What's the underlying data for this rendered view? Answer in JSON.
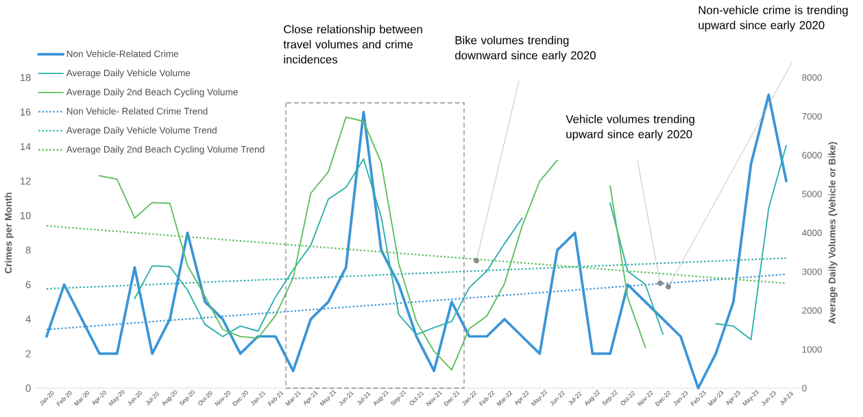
{
  "chart_data": {
    "type": "line",
    "ylabel": "Crimes per Month",
    "y2label": "Average Daily Volumes (Vehicle or Bike)",
    "categories": [
      "Jan-20",
      "Feb-20",
      "Mar-20",
      "Apr-20",
      "May-20",
      "Jun-20",
      "Jul-20",
      "Aug-20",
      "Sep-20",
      "Oct-20",
      "Nov-20",
      "Dec-20",
      "Jan-21",
      "Feb-21",
      "Mar-21",
      "Apr-21",
      "May-21",
      "Jun-21",
      "Jul-21",
      "Aug-21",
      "Sep-21",
      "Oct-21",
      "Nov-21",
      "Dec-21",
      "Jan-22",
      "Feb-22",
      "Mar-22",
      "Apr-22",
      "May-22",
      "Jun-22",
      "Jul-22",
      "Aug-22",
      "Sep-22",
      "Oct-22",
      "Nov-22",
      "Dec-22",
      "Jan-23",
      "Feb-23",
      "Mar-23",
      "Apr-23",
      "May-23",
      "Jun-23",
      "Jul-23"
    ],
    "series": [
      {
        "name": "Non Vehicle-Related Crime",
        "color": "#3a95d8",
        "values": [
          3,
          6,
          4,
          2,
          2,
          7,
          2,
          4,
          9,
          5,
          4,
          2,
          3,
          3,
          1,
          4,
          5,
          7,
          16,
          8,
          6,
          3,
          1,
          5,
          3,
          3,
          4,
          3,
          2,
          8,
          9,
          2,
          2,
          6,
          5,
          4,
          3,
          0,
          2,
          5,
          13,
          17,
          12
        ]
      },
      {
        "name": "Average Daily Vehicle Volume",
        "color": "#2bb0a8",
        "axis": "y2",
        "values": [
          null,
          null,
          null,
          null,
          null,
          2310,
          3150,
          3130,
          2530,
          1640,
          1330,
          1600,
          1470,
          2350,
          3050,
          3680,
          4870,
          5170,
          5900,
          4410,
          1890,
          1380,
          1560,
          1720,
          2590,
          3020,
          3720,
          4380,
          null,
          null,
          null,
          null,
          4770,
          3010,
          2670,
          1390,
          null,
          null,
          1660,
          1600,
          1250,
          4630,
          6250
        ]
      },
      {
        "name": "Average Daily 2nd Beach Cycling Volume",
        "color": "#5cbf5c",
        "axis": "y2",
        "values": [
          null,
          null,
          null,
          5470,
          5380,
          4380,
          4780,
          4760,
          3160,
          2360,
          1510,
          1330,
          1290,
          1870,
          2840,
          5020,
          5570,
          6980,
          6870,
          5810,
          3200,
          1720,
          950,
          470,
          1530,
          1860,
          2690,
          4170,
          5330,
          5870,
          null,
          null,
          5210,
          2330,
          1050,
          null,
          null,
          null,
          null,
          null,
          null,
          null,
          null
        ]
      },
      {
        "name": "Non Vehicle- Related Crime Trend",
        "color": "#3a95d8",
        "line_style": "dotted",
        "x": [
          "Jan-20",
          "Jul-23"
        ],
        "values": [
          3.4,
          6.6
        ]
      },
      {
        "name": "Average Daily Vehicle Volume Trend",
        "color": "#2bb0a8",
        "line_style": "dotted",
        "axis": "y2",
        "x": [
          "Jan-20",
          "Jul-23"
        ],
        "values": [
          2560,
          3350
        ]
      },
      {
        "name": "Average Daily 2nd Beach Cycling Volume Trend",
        "color": "#5cbf5c",
        "line_style": "dotted",
        "axis": "y2",
        "x": [
          "Jan-20",
          "Jul-23"
        ],
        "values": [
          4180,
          2700
        ]
      }
    ],
    "ylim": [
      0,
      18
    ],
    "yticks": [
      0,
      2,
      4,
      6,
      8,
      10,
      12,
      14,
      16,
      18
    ],
    "y2lim": [
      0,
      8000
    ],
    "y2ticks": [
      0,
      1000,
      2000,
      3000,
      4000,
      5000,
      6000,
      7000,
      8000
    ],
    "annotations": [
      "Close relationship between travel volumes and crime incidences",
      "Bike volumes trending downward since early 2020",
      "Vehicle volumes trending upward since early 2020",
      "Non-vehicle crime is trending upward since early 2020"
    ],
    "legend": "top left",
    "grid": false,
    "marker": "none",
    "line_style": "solid"
  }
}
